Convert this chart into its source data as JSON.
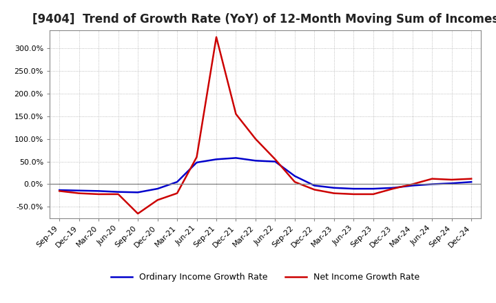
{
  "title": "[9404]  Trend of Growth Rate (YoY) of 12-Month Moving Sum of Incomes",
  "title_fontsize": 12,
  "background_color": "#ffffff",
  "grid_color": "#aaaaaa",
  "legend_labels": [
    "Ordinary Income Growth Rate",
    "Net Income Growth Rate"
  ],
  "line_colors": [
    "#0000cc",
    "#cc0000"
  ],
  "x_labels": [
    "Sep-19",
    "Dec-19",
    "Mar-20",
    "Jun-20",
    "Sep-20",
    "Dec-20",
    "Mar-21",
    "Jun-21",
    "Sep-21",
    "Dec-21",
    "Mar-22",
    "Jun-22",
    "Sep-22",
    "Dec-22",
    "Mar-23",
    "Jun-23",
    "Sep-23",
    "Dec-23",
    "Mar-24",
    "Jun-24",
    "Sep-24",
    "Dec-24"
  ],
  "ordinary_income": [
    -13,
    -14,
    -15,
    -17,
    -18,
    -10,
    5,
    48,
    55,
    58,
    52,
    50,
    18,
    -3,
    -8,
    -10,
    -10,
    -8,
    -3,
    0,
    2,
    5
  ],
  "net_income": [
    -15,
    -20,
    -22,
    -22,
    -65,
    -35,
    -20,
    60,
    325,
    155,
    100,
    55,
    5,
    -12,
    -20,
    -22,
    -22,
    -10,
    0,
    12,
    10,
    12
  ],
  "ylim": [
    -75,
    340
  ],
  "yticks": [
    -50,
    0,
    50,
    100,
    150,
    200,
    250,
    300
  ],
  "zero_line_color": "#888888",
  "spine_color": "#888888",
  "tick_fontsize": 8,
  "legend_fontsize": 9
}
